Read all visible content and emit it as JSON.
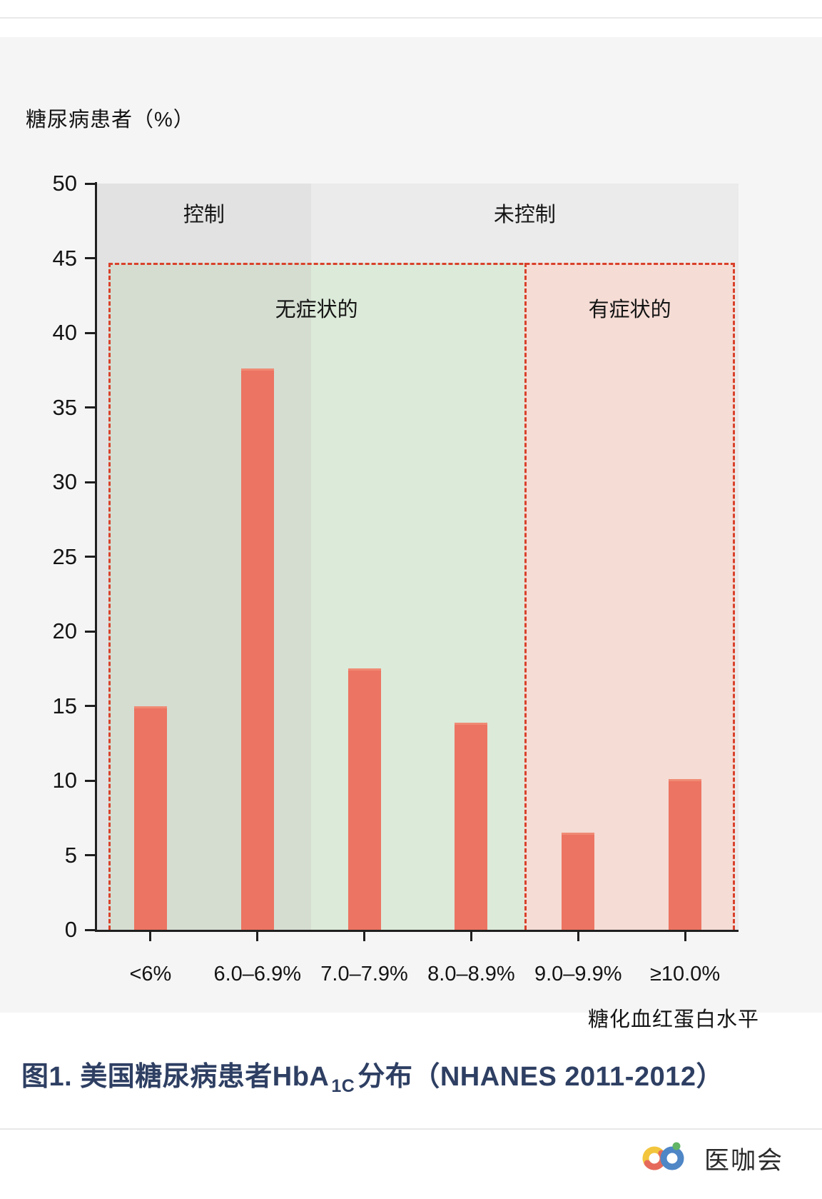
{
  "chart_data": {
    "type": "bar",
    "title": "图1. 美国糖尿病患者HbA1C分布（NHANES 2011-2012）",
    "ylabel": "糖尿病患者（%）",
    "xlabel": "糖化血红蛋白水平",
    "categories": [
      "<6%",
      "6.0–6.9%",
      "7.0–7.9%",
      "8.0–8.9%",
      "9.0–9.9%",
      "≥10.0%"
    ],
    "values": [
      15,
      37.6,
      17.5,
      13.9,
      6.5,
      10.1
    ],
    "ylim": [
      0,
      50
    ],
    "ytick_step": 5,
    "grid": false,
    "legend": "none",
    "bar_color": "#ec7462",
    "bar_top_edge_color": "#ef8a74",
    "axis_color": "#1f1f1f",
    "dashed_border_color": "#d9412b",
    "region_box_top_value": 44.7,
    "zones": [
      {
        "label": "控制",
        "from_category": 0,
        "to_category": 1,
        "color": "#e3e2e2"
      },
      {
        "label": "未控制",
        "from_category": 2,
        "to_category": 5,
        "color": "#ebebec"
      }
    ],
    "regions": [
      {
        "label": "无症状的",
        "from_category": 0,
        "to_category": 3,
        "fill": "#dcead9",
        "fill_over_controlled_zone": "#d5ddd1"
      },
      {
        "label": "有症状的",
        "from_category": 4,
        "to_category": 5,
        "fill": "#f5dcd5"
      }
    ]
  },
  "caption": {
    "prefix": "图1. 美国糖尿病患者HbA",
    "subscript": "1C",
    "suffix": "分布（NHANES 2011-2012）",
    "color": "#2e3f63"
  },
  "footer": {
    "brand": "医咖会",
    "icon_colors": {
      "yellow": "#f2c53d",
      "coral": "#e56a5b",
      "blue": "#4e86c6",
      "green": "#62b564"
    }
  }
}
